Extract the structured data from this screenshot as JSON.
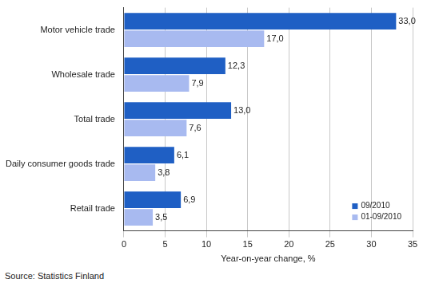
{
  "chart_data": {
    "type": "bar",
    "orientation": "horizontal",
    "categories": [
      "Motor vehicle trade",
      "Wholesale trade",
      "Total trade",
      "Daily consumer goods trade",
      "Retail trade"
    ],
    "series": [
      {
        "name": "09/2010",
        "color": "#1f5fc4",
        "values": [
          33.0,
          12.3,
          13.0,
          6.1,
          6.9
        ],
        "value_labels": [
          "33,0",
          "12,3",
          "13,0",
          "6,1",
          "6,9"
        ]
      },
      {
        "name": "01-09/2010",
        "color": "#a8baf0",
        "values": [
          17.0,
          7.9,
          7.6,
          3.8,
          3.5
        ],
        "value_labels": [
          "17,0",
          "7,9",
          "7,6",
          "3,8",
          "3,5"
        ]
      }
    ],
    "xlabel": "Year-on-year change, %",
    "xlim": [
      0,
      35
    ],
    "xticks": [
      0,
      5,
      10,
      15,
      20,
      25,
      30,
      35
    ],
    "grid": true,
    "legend": "lower right",
    "data_labels": true,
    "annotations": [
      "Source: Statistics Finland"
    ]
  }
}
